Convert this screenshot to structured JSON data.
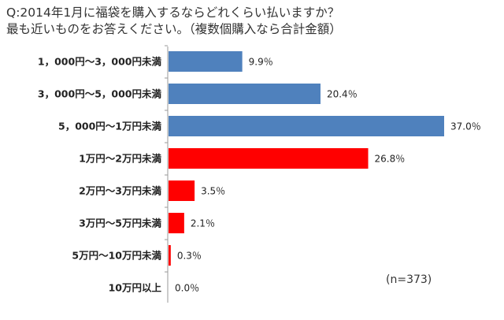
{
  "title_line1": "Q:2014年1月に福袋を購入するならどれくらい払いますか？",
  "title_line2": "最も近いものをお答えください。（複数個購入なら合計金額）",
  "n_label": "(n=373)",
  "colors": {
    "blue": "#4f81bd",
    "red": "#ff0000"
  },
  "chart_data": {
    "type": "bar",
    "orientation": "horizontal",
    "title": "Q:2014年1月に福袋を購入するならどれくらい払いますか？ 最も近いものをお答えください。（複数個購入なら合計金額）",
    "unit": "%",
    "categories": [
      "1，000円～3，000円未満",
      "3，000円～5，000円未満",
      "5，000円～1万円未満",
      "1万円～2万円未満",
      "2万円～3万円未満",
      "3万円～5万円未満",
      "5万円～10万円未満",
      "10万円以上"
    ],
    "values": [
      9.9,
      20.4,
      37.0,
      26.8,
      3.5,
      2.1,
      0.3,
      0.0
    ],
    "value_labels": [
      "9.9％",
      "20.4％",
      "37.0％",
      "26.8％",
      "3.5％",
      "2.1％",
      "0.3％",
      "0.0％"
    ],
    "bar_colors": [
      "blue",
      "blue",
      "blue",
      "red",
      "red",
      "red",
      "red",
      "red"
    ],
    "xlim": [
      0,
      37.0
    ],
    "grid": false,
    "legend": "none"
  }
}
